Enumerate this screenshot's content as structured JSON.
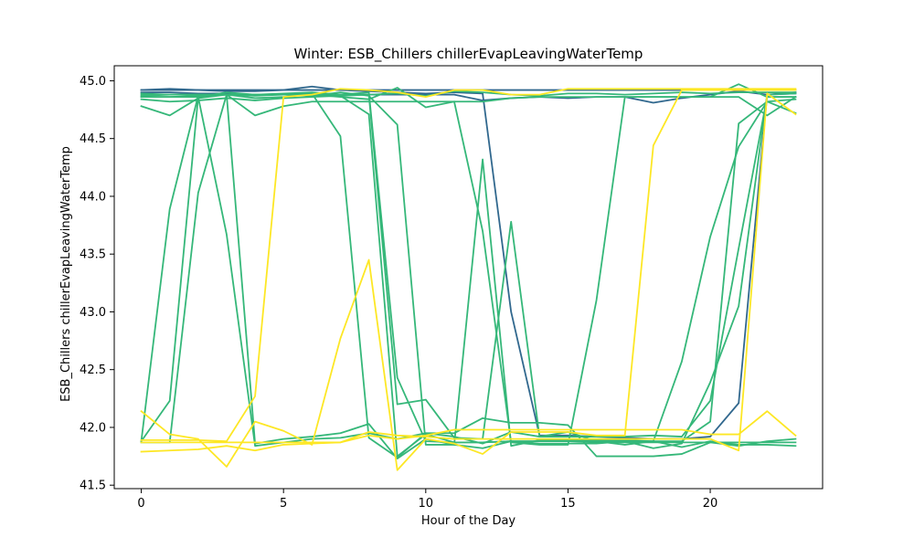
{
  "chart_data": {
    "type": "line",
    "title": "Winter: ESB_Chillers chillerEvapLeavingWaterTemp",
    "xlabel": "Hour of the Day",
    "ylabel": "ESB_Chillers chillerEvapLeavingWaterTemp",
    "xlim": [
      -0.95,
      23.95
    ],
    "ylim": [
      41.47,
      45.13
    ],
    "xticks": [
      0,
      5,
      10,
      15,
      20
    ],
    "xtick_labels": [
      "0",
      "5",
      "10",
      "15",
      "20"
    ],
    "yticks": [
      41.5,
      42.0,
      42.5,
      43.0,
      43.5,
      44.0,
      44.5,
      45.0
    ],
    "ytick_labels": [
      "41.5",
      "42.0",
      "42.5",
      "43.0",
      "43.5",
      "44.0",
      "44.5",
      "45.0"
    ],
    "grid": false,
    "legend": false,
    "x": [
      0,
      1,
      2,
      3,
      4,
      5,
      6,
      7,
      8,
      9,
      10,
      11,
      12,
      13,
      14,
      15,
      16,
      17,
      18,
      19,
      20,
      21,
      22,
      23
    ],
    "series": [
      {
        "color": "#31688e",
        "values": [
          44.92,
          44.93,
          44.92,
          44.91,
          44.91,
          44.92,
          44.95,
          44.92,
          44.91,
          44.9,
          44.89,
          44.9,
          44.89,
          43.0,
          41.93,
          41.93,
          41.92,
          41.91,
          41.9,
          41.9,
          41.92,
          42.21,
          44.88,
          44.9
        ]
      },
      {
        "color": "#31688e",
        "values": [
          44.9,
          44.9,
          44.89,
          44.89,
          44.88,
          44.88,
          44.88,
          44.88,
          44.88,
          44.88,
          44.88,
          44.88,
          44.83,
          44.85,
          44.86,
          44.85,
          44.86,
          44.86,
          44.81,
          44.85,
          44.88,
          44.91,
          44.88,
          44.89
        ]
      },
      {
        "color": "#31688e",
        "values": [
          44.92,
          44.92,
          44.92,
          44.92,
          44.92,
          44.92,
          44.92,
          44.92,
          44.92,
          44.92,
          44.92,
          44.92,
          44.92,
          44.92,
          44.92,
          44.92,
          44.92,
          44.92,
          44.92,
          44.92,
          44.92,
          44.92,
          44.92,
          44.92
        ]
      },
      {
        "color": "#35b779",
        "values": [
          44.78,
          44.7,
          44.85,
          44.88,
          44.7,
          44.78,
          44.82,
          44.82,
          44.82,
          44.82,
          44.82,
          44.82,
          44.82,
          44.85,
          44.86,
          44.86,
          44.86,
          44.86,
          44.86,
          44.86,
          44.86,
          44.86,
          44.7,
          44.86
        ]
      },
      {
        "color": "#35b779",
        "values": [
          44.84,
          44.82,
          44.83,
          44.85,
          44.83,
          44.85,
          44.86,
          44.87,
          44.88,
          44.89,
          44.87,
          44.91,
          44.9,
          44.88,
          44.87,
          44.89,
          44.89,
          44.88,
          44.89,
          44.9,
          44.89,
          44.9,
          44.9,
          44.9
        ]
      },
      {
        "color": "#35b779",
        "values": [
          41.88,
          43.89,
          44.87,
          44.88,
          44.85,
          44.86,
          44.89,
          44.87,
          44.71,
          41.75,
          41.94,
          41.87,
          41.87,
          41.88,
          41.88,
          41.88,
          41.87,
          41.87,
          41.87,
          41.87,
          41.87,
          41.87,
          41.87,
          41.87
        ]
      },
      {
        "color": "#35b779",
        "values": [
          41.88,
          42.23,
          44.86,
          43.67,
          41.84,
          41.87,
          41.9,
          41.91,
          41.95,
          41.9,
          41.95,
          41.95,
          42.08,
          42.04,
          42.04,
          42.02,
          41.75,
          41.75,
          41.75,
          41.77,
          41.87,
          41.84,
          41.88,
          41.9
        ]
      },
      {
        "color": "#35b779",
        "values": [
          41.87,
          41.87,
          44.03,
          44.88,
          44.87,
          44.88,
          44.89,
          44.52,
          41.91,
          41.74,
          41.95,
          41.92,
          41.86,
          41.96,
          41.92,
          41.96,
          41.88,
          41.85,
          41.88,
          41.83,
          41.88,
          41.85,
          41.85,
          41.84
        ]
      },
      {
        "color": "#35b779",
        "values": [
          44.89,
          44.88,
          44.88,
          44.88,
          41.86,
          41.9,
          41.92,
          41.95,
          42.03,
          41.73,
          41.9,
          41.85,
          41.82,
          41.88,
          41.86,
          41.86,
          41.86,
          41.88,
          41.82,
          41.86,
          42.39,
          43.05,
          44.88,
          44.89
        ]
      },
      {
        "color": "#35b779",
        "values": [
          44.86,
          44.86,
          44.87,
          44.88,
          44.88,
          44.88,
          44.87,
          44.9,
          44.87,
          44.62,
          41.85,
          41.85,
          44.32,
          41.84,
          41.89,
          41.89,
          41.89,
          41.89,
          41.88,
          41.88,
          42.05,
          44.63,
          44.82,
          44.84
        ]
      },
      {
        "color": "#35b779",
        "values": [
          44.86,
          44.86,
          44.86,
          44.9,
          44.88,
          44.89,
          44.9,
          44.88,
          44.9,
          42.43,
          41.88,
          41.87,
          41.87,
          41.88,
          41.88,
          41.88,
          41.88,
          41.88,
          41.88,
          42.57,
          43.65,
          44.43,
          44.82,
          44.72
        ]
      },
      {
        "color": "#35b779",
        "values": [
          44.87,
          44.88,
          44.88,
          44.88,
          44.88,
          44.88,
          44.88,
          44.86,
          44.84,
          44.94,
          44.77,
          44.82,
          43.7,
          41.87,
          41.85,
          41.85,
          43.1,
          44.86,
          44.86,
          44.86,
          44.86,
          44.97,
          44.86,
          44.86
        ]
      },
      {
        "color": "#35b779",
        "values": [
          44.88,
          44.88,
          44.88,
          44.88,
          44.88,
          44.88,
          44.88,
          44.88,
          44.88,
          42.2,
          42.24,
          41.91,
          41.9,
          43.78,
          41.92,
          41.92,
          41.92,
          41.92,
          41.93,
          41.92,
          42.23,
          43.55,
          44.86,
          44.86
        ]
      },
      {
        "color": "#fde725",
        "values": [
          42.14,
          41.94,
          41.9,
          41.66,
          42.05,
          41.97,
          41.85,
          42.77,
          43.45,
          41.63,
          41.9,
          41.86,
          41.77,
          41.96,
          41.96,
          41.96,
          41.93,
          41.93,
          44.44,
          44.92,
          44.92,
          44.92,
          44.92,
          44.92
        ]
      },
      {
        "color": "#fde725",
        "values": [
          41.79,
          41.8,
          41.81,
          41.84,
          41.8,
          41.85,
          41.86,
          41.87,
          41.93,
          41.9,
          41.93,
          41.98,
          41.98,
          41.98,
          41.98,
          41.98,
          41.98,
          41.98,
          41.98,
          41.98,
          41.94,
          41.94,
          42.14,
          41.93
        ]
      },
      {
        "color": "#fde725",
        "values": [
          41.89,
          41.89,
          41.89,
          41.88,
          42.27,
          44.86,
          44.88,
          44.93,
          44.92,
          44.9,
          44.86,
          44.92,
          44.92,
          44.88,
          44.88,
          44.93,
          44.93,
          44.93,
          44.93,
          44.93,
          44.93,
          44.93,
          44.93,
          44.93
        ]
      },
      {
        "color": "#fde725",
        "values": [
          41.87,
          41.87,
          41.87,
          41.87,
          41.87,
          41.87,
          41.87,
          41.87,
          41.96,
          41.93,
          41.92,
          41.9,
          41.9,
          41.9,
          41.9,
          41.9,
          41.9,
          41.9,
          41.9,
          41.9,
          41.9,
          41.8,
          44.89,
          44.71
        ]
      }
    ]
  }
}
